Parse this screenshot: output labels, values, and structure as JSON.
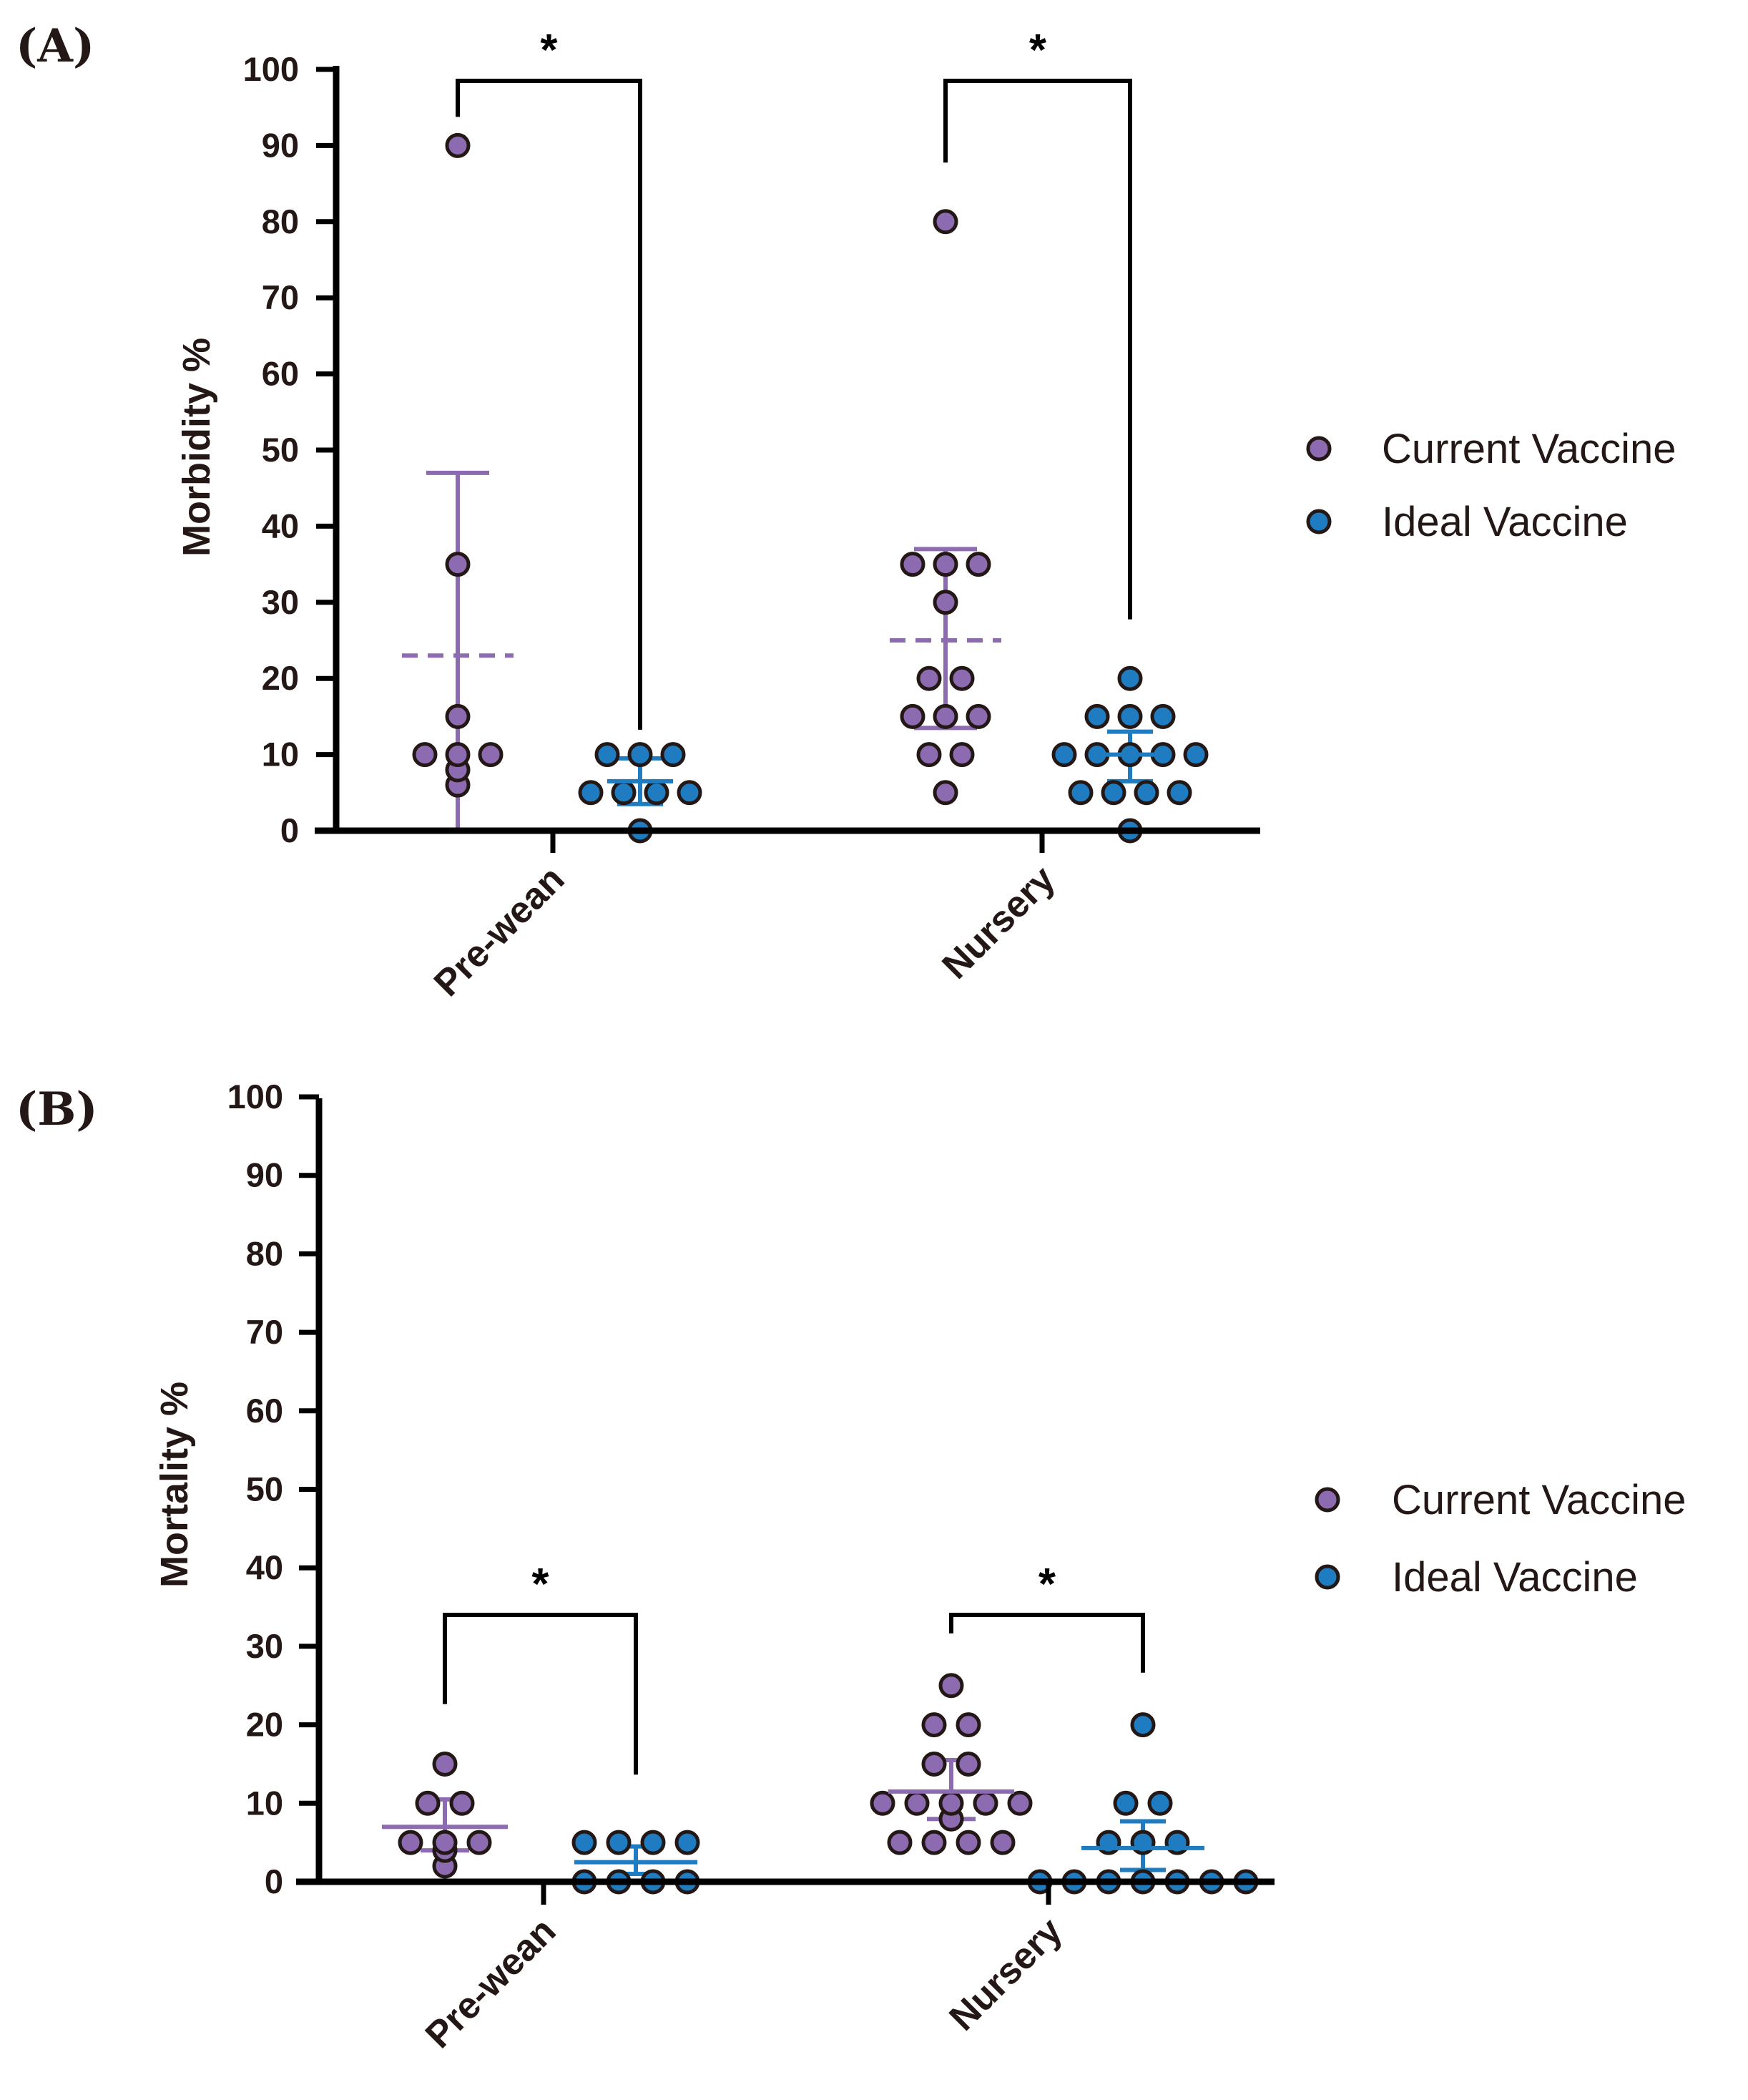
{
  "colors": {
    "current": "#8C6BB1",
    "ideal": "#1F7CC1",
    "axis": "#000000",
    "text": "#231815"
  },
  "legend": [
    {
      "label": "Current Vaccine",
      "color": "#8C6BB1"
    },
    {
      "label": "Ideal Vaccine",
      "color": "#1F7CC1"
    }
  ],
  "chart_data": [
    {
      "type": "scatter",
      "panel_label": "(A)",
      "title": "",
      "xlabel": "",
      "ylabel": "Morbidity %",
      "ylim": [
        0,
        100
      ],
      "yticks": [
        0,
        10,
        20,
        30,
        40,
        50,
        60,
        70,
        80,
        90,
        100
      ],
      "categories": [
        "Pre-wean",
        "Nursery"
      ],
      "legend_position": "right",
      "series": [
        {
          "name": "Current Vaccine",
          "values": [
            [
              90,
              35,
              15,
              10,
              10,
              10,
              8,
              6
            ],
            [
              80,
              35,
              35,
              35,
              30,
              20,
              20,
              15,
              15,
              15,
              10,
              10,
              5
            ]
          ],
          "mean": [
            23,
            25
          ],
          "error_low": [
            0,
            13.5
          ],
          "error_high": [
            47,
            37
          ],
          "mean_style": "dashed"
        },
        {
          "name": "Ideal Vaccine",
          "values": [
            [
              10,
              10,
              10,
              5,
              5,
              5,
              5,
              0
            ],
            [
              20,
              15,
              15,
              15,
              10,
              10,
              10,
              10,
              10,
              5,
              5,
              5,
              5,
              0
            ]
          ],
          "mean": [
            6.5,
            10
          ],
          "error_low": [
            3.5,
            6.5
          ],
          "error_high": [
            9.5,
            13
          ],
          "mean_style": "solid"
        }
      ],
      "significance": [
        {
          "category": "Pre-wean",
          "label": "*",
          "y": 98.5,
          "left_end": 90,
          "right_end": 9.5
        },
        {
          "category": "Nursery",
          "label": "*",
          "y": 98.5,
          "left_end": 84,
          "right_end": 24
        }
      ]
    },
    {
      "type": "scatter",
      "panel_label": "(B)",
      "title": "",
      "xlabel": "",
      "ylabel": "Mortality %",
      "ylim": [
        0,
        100
      ],
      "yticks": [
        0,
        10,
        20,
        30,
        40,
        50,
        60,
        70,
        80,
        90,
        100
      ],
      "categories": [
        "Pre-wean",
        "Nursery"
      ],
      "legend_position": "right",
      "series": [
        {
          "name": "Current Vaccine",
          "values": [
            [
              15,
              10,
              10,
              5,
              5,
              5,
              4,
              2
            ],
            [
              25,
              20,
              20,
              15,
              15,
              10,
              10,
              10,
              10,
              10,
              8,
              5,
              5,
              5,
              5
            ]
          ],
          "mean": [
            7,
            11.5
          ],
          "error_low": [
            4,
            8
          ],
          "error_high": [
            10.5,
            15.5
          ],
          "mean_style": "solid"
        },
        {
          "name": "Ideal Vaccine",
          "values": [
            [
              5,
              5,
              5,
              5,
              0,
              0,
              0,
              0
            ],
            [
              20,
              10,
              10,
              5,
              5,
              5,
              0,
              0,
              0,
              0,
              0,
              0,
              0
            ]
          ],
          "mean": [
            2.5,
            4.3
          ],
          "error_low": [
            1,
            1.5
          ],
          "error_high": [
            4.5,
            7.7
          ],
          "mean_style": "solid"
        }
      ],
      "significance": [
        {
          "category": "Pre-wean",
          "label": "*",
          "y": 34,
          "left_end": 19,
          "right_end": 10
        },
        {
          "category": "Nursery",
          "label": "*",
          "y": 34,
          "left_end": 28,
          "right_end": 23
        }
      ]
    }
  ]
}
